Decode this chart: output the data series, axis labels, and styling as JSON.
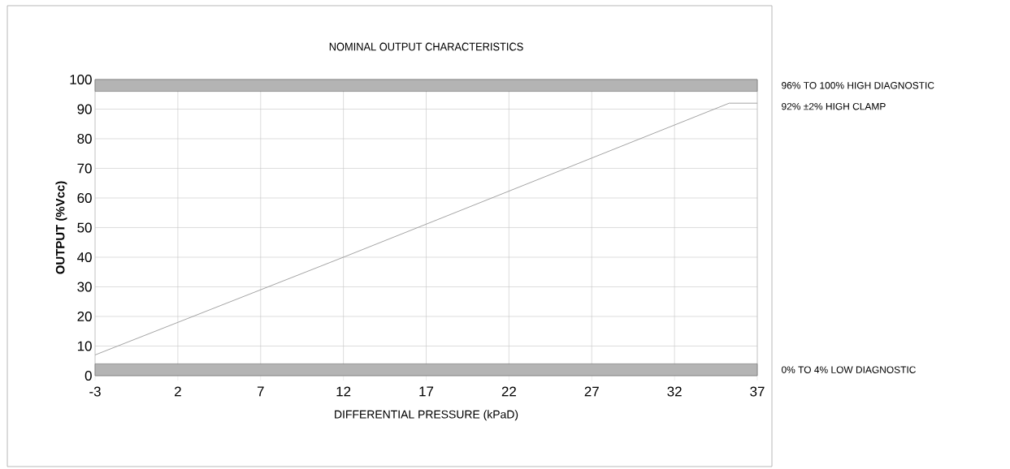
{
  "chart_data": {
    "type": "line",
    "title": "NOMINAL OUTPUT CHARACTERISTICS",
    "xlabel": "DIFFERENTIAL PRESSURE (kPaD)",
    "ylabel": "OUTPUT (%Vcc)",
    "x": [
      -3,
      12,
      35.3,
      37
    ],
    "values": [
      7,
      40,
      92,
      92
    ],
    "color": "#9a9a9a",
    "xlim": [
      -3,
      37
    ],
    "xticks": [
      -3,
      2,
      7,
      12,
      17,
      22,
      27,
      32,
      37
    ],
    "ylim": [
      0,
      100
    ],
    "yticks": [
      0,
      10,
      20,
      30,
      40,
      50,
      60,
      70,
      80,
      90,
      100
    ],
    "grid": true,
    "bands": [
      {
        "axis": "y",
        "from": 96,
        "to": 100,
        "label": "96% TO 100% HIGH DIAGNOSTIC",
        "color": "#b4b4b4"
      },
      {
        "axis": "y",
        "from": 0,
        "to": 4,
        "label": "0% TO 4% LOW DIAGNOSTIC",
        "color": "#b4b4b4"
      }
    ],
    "annotations": [
      {
        "text": "92% ±2% HIGH CLAMP",
        "x": 37,
        "y": 92
      }
    ]
  }
}
